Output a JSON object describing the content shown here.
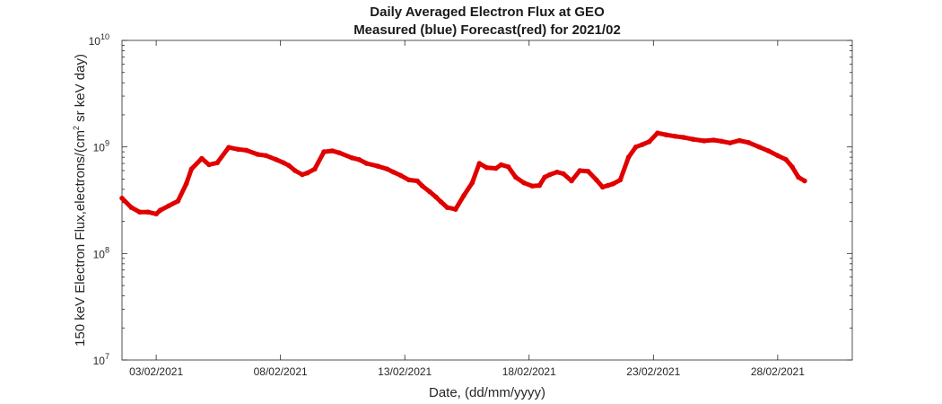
{
  "chart_data": {
    "type": "line",
    "title": "Daily Averaged Electron Flux at GEO",
    "subtitle": "Measured (blue) Forecast(red) for 2021/02",
    "xlabel": "Date, (dd/mm/yyyy)",
    "ylabel_main": "150 keV Electron Flux,electrons/(cm",
    "ylabel_sup": "2",
    "ylabel_tail": " sr keV day)",
    "x_ticks": [
      "03/02/2021",
      "08/02/2021",
      "13/02/2021",
      "18/02/2021",
      "23/02/2021",
      "28/02/2021"
    ],
    "y_ticks": [
      {
        "base": "10",
        "exp": "7",
        "value": 10000000
      },
      {
        "base": "10",
        "exp": "8",
        "value": 100000000
      },
      {
        "base": "10",
        "exp": "9",
        "value": 1000000000
      },
      {
        "base": "10",
        "exp": "10",
        "value": 10000000000
      }
    ],
    "x_range_day": [
      1.55,
      3.0
    ],
    "xlim": [
      "2021-02-01 15:00",
      "2021-03-03 00:00"
    ],
    "ylim": [
      10000000,
      10000000000
    ],
    "y_scale": "log",
    "grid": false,
    "series": [
      {
        "color": "#e00000",
        "x": [
          "2021-02-01 15:00",
          "2021-02-02 00:00",
          "2021-02-02 08:00",
          "2021-02-02 16:00",
          "2021-02-03 00:00",
          "2021-02-03 04:00",
          "2021-02-03 12:00",
          "2021-02-03 21:00",
          "2021-02-04 05:00",
          "2021-02-04 10:00",
          "2021-02-04 20:00",
          "2021-02-05 03:00",
          "2021-02-05 11:00",
          "2021-02-05 22:00",
          "2021-02-06 07:00",
          "2021-02-06 15:00",
          "2021-02-07 02:00",
          "2021-02-07 10:00",
          "2021-02-07 20:00",
          "2021-02-08 03:00",
          "2021-02-08 08:00",
          "2021-02-08 14:00",
          "2021-02-08 21:00",
          "2021-02-09 02:00",
          "2021-02-09 09:00",
          "2021-02-09 18:00",
          "2021-02-10 02:00",
          "2021-02-10 09:00",
          "2021-02-10 21:00",
          "2021-02-11 04:00",
          "2021-02-11 11:00",
          "2021-02-11 22:00",
          "2021-02-12 07:00",
          "2021-02-12 13:00",
          "2021-02-12 20:00",
          "2021-02-13 04:00",
          "2021-02-13 12:00",
          "2021-02-13 17:00",
          "2021-02-14 00:00",
          "2021-02-14 06:00",
          "2021-02-14 11:00",
          "2021-02-14 17:00",
          "2021-02-15 01:00",
          "2021-02-15 09:00",
          "2021-02-15 17:00",
          "2021-02-16 00:00",
          "2021-02-16 07:00",
          "2021-02-16 16:00",
          "2021-02-16 21:00",
          "2021-02-17 04:00",
          "2021-02-17 11:00",
          "2021-02-17 19:00",
          "2021-02-18 03:00",
          "2021-02-18 10:00",
          "2021-02-18 15:00",
          "2021-02-18 20:00",
          "2021-02-19 03:00",
          "2021-02-19 09:00",
          "2021-02-19 17:00",
          "2021-02-20 01:00",
          "2021-02-20 09:00",
          "2021-02-20 17:00",
          "2021-02-20 23:00",
          "2021-02-21 04:00",
          "2021-02-21 09:00",
          "2021-02-21 16:00",
          "2021-02-22 00:00",
          "2021-02-22 07:00",
          "2021-02-22 13:00",
          "2021-02-22 20:00",
          "2021-02-23 04:00",
          "2021-02-23 12:00",
          "2021-02-23 21:00",
          "2021-02-24 05:00",
          "2021-02-24 14:00",
          "2021-02-25 01:00",
          "2021-02-25 10:00",
          "2021-02-25 18:00",
          "2021-02-26 02:00",
          "2021-02-26 11:00",
          "2021-02-26 20:00",
          "2021-02-27 06:00",
          "2021-02-27 15:00",
          "2021-02-28 00:00",
          "2021-02-28 08:00",
          "2021-02-28 14:00",
          "2021-02-28 20:00",
          "2021-03-01 02:00"
        ],
        "y": [
          330000000.0,
          270000000.0,
          245000000.0,
          245000000.0,
          235000000.0,
          255000000.0,
          280000000.0,
          310000000.0,
          450000000.0,
          620000000.0,
          780000000.0,
          680000000.0,
          710000000.0,
          990000000.0,
          950000000.0,
          930000000.0,
          850000000.0,
          830000000.0,
          760000000.0,
          710000000.0,
          670000000.0,
          600000000.0,
          550000000.0,
          570000000.0,
          620000000.0,
          900000000.0,
          920000000.0,
          880000000.0,
          790000000.0,
          760000000.0,
          700000000.0,
          660000000.0,
          620000000.0,
          580000000.0,
          540000000.0,
          490000000.0,
          480000000.0,
          430000000.0,
          380000000.0,
          340000000.0,
          305000000.0,
          270000000.0,
          260000000.0,
          350000000.0,
          460000000.0,
          700000000.0,
          640000000.0,
          630000000.0,
          680000000.0,
          650000000.0,
          520000000.0,
          460000000.0,
          430000000.0,
          435000000.0,
          520000000.0,
          550000000.0,
          580000000.0,
          560000000.0,
          480000000.0,
          600000000.0,
          590000000.0,
          490000000.0,
          420000000.0,
          435000000.0,
          450000000.0,
          490000000.0,
          800000000.0,
          1000000000.0,
          1050000000.0,
          1120000000.0,
          1350000000.0,
          1300000000.0,
          1260000000.0,
          1230000000.0,
          1180000000.0,
          1140000000.0,
          1160000000.0,
          1130000000.0,
          1090000000.0,
          1150000000.0,
          1100000000.0,
          1000000000.0,
          920000000.0,
          830000000.0,
          760000000.0,
          650000000.0,
          520000000.0,
          480000000.0
        ]
      }
    ]
  }
}
